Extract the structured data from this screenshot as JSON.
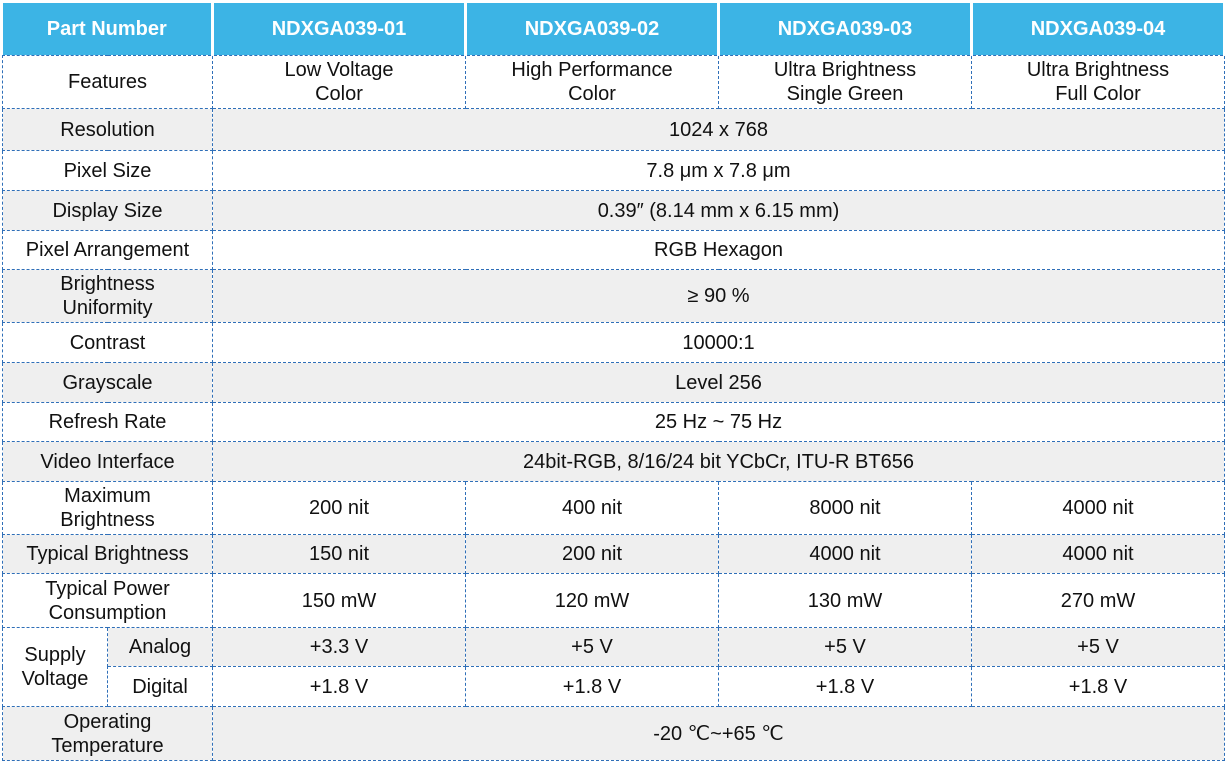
{
  "table": {
    "header": [
      "Part Number",
      "NDXGA039-01",
      "NDXGA039-02",
      "NDXGA039-03",
      "NDXGA039-04"
    ],
    "rows": [
      {
        "label": "Features",
        "values": [
          [
            "Low Voltage",
            "Color"
          ],
          [
            "High Performance",
            "Color"
          ],
          [
            "Ultra Brightness",
            "Single Green"
          ],
          [
            "Ultra Brightness",
            "Full Color"
          ]
        ]
      },
      {
        "label": "Resolution",
        "values": [
          "1024 x 768"
        ]
      },
      {
        "label": "Pixel Size",
        "values": [
          "7.8 μm x 7.8 μm"
        ]
      },
      {
        "label": "Display Size",
        "values": [
          "0.39″ (8.14 mm x 6.15 mm)"
        ]
      },
      {
        "label": "Pixel Arrangement",
        "values": [
          "RGB Hexagon"
        ]
      },
      {
        "label": [
          "Brightness",
          "Uniformity"
        ],
        "values": [
          "≥ 90 %"
        ]
      },
      {
        "label": "Contrast",
        "values": [
          "10000:1"
        ]
      },
      {
        "label": "Grayscale",
        "values": [
          "Level 256"
        ]
      },
      {
        "label": "Refresh Rate",
        "values": [
          "25 Hz ~ 75 Hz"
        ]
      },
      {
        "label": "Video Interface",
        "values": [
          "24bit-RGB, 8/16/24 bit YCbCr, ITU-R BT656"
        ]
      },
      {
        "label": [
          "Maximum",
          "Brightness"
        ],
        "values": [
          "200 nit",
          "400 nit",
          "8000 nit",
          "4000 nit"
        ]
      },
      {
        "label": "Typical Brightness",
        "values": [
          "150 nit",
          "200 nit",
          "4000 nit",
          "4000 nit"
        ]
      },
      {
        "label": [
          "Typical Power",
          "Consumption"
        ],
        "values": [
          "150 mW",
          "120 mW",
          "130 mW",
          "270 mW"
        ]
      },
      {
        "label": [
          "Supply",
          "Voltage"
        ],
        "sub": [
          {
            "label": "Analog",
            "values": [
              "+3.3 V",
              "+5 V",
              "+5 V",
              "+5 V"
            ]
          },
          {
            "label": "Digital",
            "values": [
              "+1.8 V",
              "+1.8 V",
              "+1.8 V",
              "+1.8 V"
            ]
          }
        ]
      },
      {
        "label": [
          "Operating",
          "Temperature"
        ],
        "values": [
          "-20 ℃~+65 ℃"
        ]
      }
    ]
  }
}
